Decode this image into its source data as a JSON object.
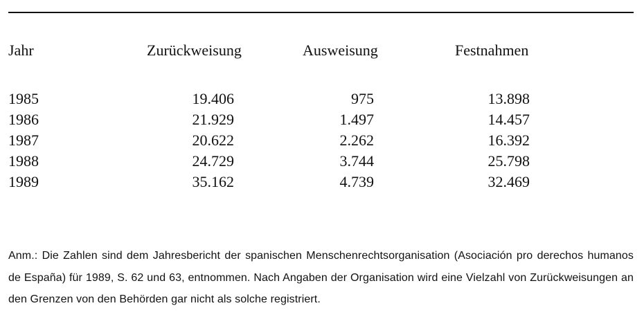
{
  "table": {
    "headers": [
      "Jahr",
      "Zurückweisung",
      "Ausweisung",
      "Festnahmen"
    ],
    "rows": [
      [
        "1985",
        "19.406",
        "975",
        "13.898"
      ],
      [
        "1986",
        "21.929",
        "1.497",
        "14.457"
      ],
      [
        "1987",
        "20.622",
        "2.262",
        "16.392"
      ],
      [
        "1988",
        "24.729",
        "3.744",
        "25.798"
      ],
      [
        "1989",
        "35.162",
        "4.739",
        "32.469"
      ]
    ]
  },
  "note": "Anm.: Die Zahlen sind dem Jahresbericht der spanischen Menschenrechtsorganisation (Asociación pro derechos humanos de España) für 1989, S. 62 und 63, entnommen. Nach Angaben der Organisation wird eine Vielzahl von Zurückweisungen an den Grenzen von den Behörden gar nicht als solche registriert."
}
